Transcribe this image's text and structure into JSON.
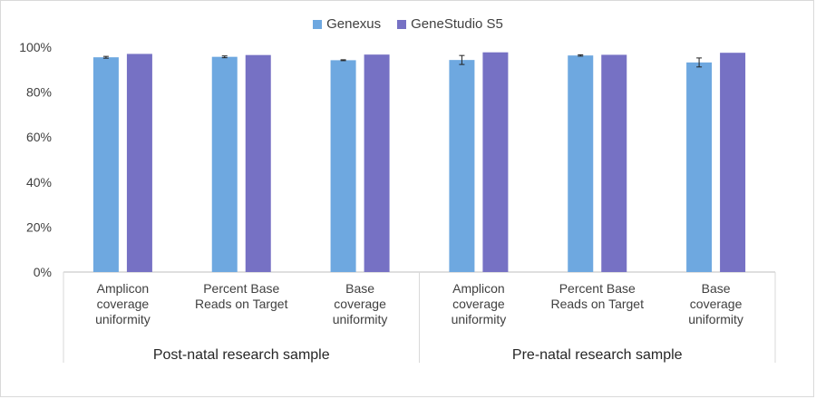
{
  "chart_data": {
    "type": "bar",
    "groups": [
      {
        "label": "Post-natal research sample",
        "categories": [
          [
            "Amplicon",
            "coverage",
            "uniformity"
          ],
          [
            "Percent Base",
            "Reads on Target"
          ],
          [
            "Base",
            "coverage",
            "uniformity"
          ]
        ]
      },
      {
        "label": "Pre-natal research sample",
        "categories": [
          [
            "Amplicon",
            "coverage",
            "uniformity"
          ],
          [
            "Percent Base",
            "Reads on Target"
          ],
          [
            "Base",
            "coverage",
            "uniformity"
          ]
        ]
      }
    ],
    "series": [
      {
        "name": "Genexus",
        "color": "#6ea8e0",
        "values": [
          0.955,
          0.957,
          0.942,
          0.943,
          0.963,
          0.932
        ],
        "error": [
          0.004,
          0.004,
          0.002,
          0.02,
          0.003,
          0.02
        ]
      },
      {
        "name": "GeneStudio S5",
        "color": "#7671c4",
        "values": [
          0.97,
          0.965,
          0.967,
          0.977,
          0.966,
          0.975
        ],
        "error": [
          0,
          0,
          0,
          0,
          0,
          0
        ]
      }
    ],
    "y_ticks": [
      "0%",
      "20%",
      "40%",
      "60%",
      "80%",
      "100%"
    ],
    "ylim": [
      0,
      1
    ],
    "grid": false,
    "legend_position": "top"
  }
}
